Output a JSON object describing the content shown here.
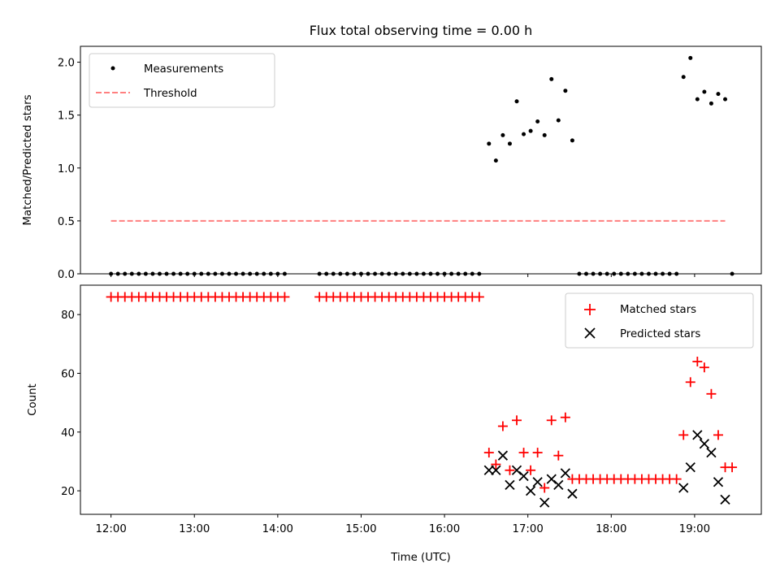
{
  "figure": {
    "title": "Flux total observing time = 0.00 h",
    "xlabel": "Time (UTC)"
  },
  "chart_data": [
    {
      "type": "scatter",
      "ylabel": "Matched/Predicted stars",
      "ylim": [
        0,
        2.15
      ],
      "xlim": [
        "11:38",
        "19:48"
      ],
      "yticks": [
        0.0,
        0.5,
        1.0,
        1.5,
        2.0
      ],
      "ytick_labels": [
        "0.0",
        "0.5",
        "1.0",
        "1.5",
        "2.0"
      ],
      "xticks": [
        "12:00",
        "13:00",
        "14:00",
        "15:00",
        "16:00",
        "17:00",
        "18:00",
        "19:00"
      ],
      "xtick_labels": [],
      "legend_position": "top-left",
      "grid": false,
      "series": [
        {
          "name": "Measurements",
          "marker": "dot",
          "color": "#000000",
          "x": [
            "12:00",
            "12:05",
            "12:10",
            "12:15",
            "12:20",
            "12:25",
            "12:30",
            "12:35",
            "12:40",
            "12:45",
            "12:50",
            "12:55",
            "13:00",
            "13:05",
            "13:10",
            "13:15",
            "13:20",
            "13:25",
            "13:30",
            "13:35",
            "13:40",
            "13:45",
            "13:50",
            "13:55",
            "14:00",
            "14:05",
            "14:30",
            "14:35",
            "14:40",
            "14:45",
            "14:50",
            "14:55",
            "15:00",
            "15:05",
            "15:10",
            "15:15",
            "15:20",
            "15:25",
            "15:30",
            "15:35",
            "15:40",
            "15:45",
            "15:50",
            "15:55",
            "16:00",
            "16:05",
            "16:10",
            "16:15",
            "16:20",
            "16:25",
            "16:32",
            "16:37",
            "16:42",
            "16:47",
            "16:52",
            "16:57",
            "17:02",
            "17:07",
            "17:12",
            "17:17",
            "17:22",
            "17:27",
            "17:32",
            "17:37",
            "17:42",
            "17:47",
            "17:52",
            "17:57",
            "18:02",
            "18:07",
            "18:12",
            "18:17",
            "18:22",
            "18:27",
            "18:32",
            "18:37",
            "18:42",
            "18:47",
            "18:52",
            "18:57",
            "19:02",
            "19:07",
            "19:12",
            "19:17",
            "19:22",
            "19:27"
          ],
          "y": [
            0,
            0,
            0,
            0,
            0,
            0,
            0,
            0,
            0,
            0,
            0,
            0,
            0,
            0,
            0,
            0,
            0,
            0,
            0,
            0,
            0,
            0,
            0,
            0,
            0,
            0,
            0,
            0,
            0,
            0,
            0,
            0,
            0,
            0,
            0,
            0,
            0,
            0,
            0,
            0,
            0,
            0,
            0,
            0,
            0,
            0,
            0,
            0,
            0,
            0,
            1.23,
            1.07,
            1.31,
            1.23,
            1.63,
            1.32,
            1.35,
            1.44,
            1.31,
            1.84,
            1.45,
            1.73,
            1.26,
            0,
            0,
            0,
            0,
            0,
            0,
            0,
            0,
            0,
            0,
            0,
            0,
            0,
            0,
            0,
            1.86,
            2.04,
            1.65,
            1.72,
            1.61,
            1.7,
            1.65,
            0
          ]
        },
        {
          "name": "Threshold",
          "marker": "dashed-line",
          "color": "#ff7f7f",
          "x": [
            "12:00",
            "19:22"
          ],
          "y": [
            0.5,
            0.5
          ]
        }
      ]
    },
    {
      "type": "scatter",
      "ylabel": "Count",
      "ylim": [
        12,
        90
      ],
      "xlim": [
        "11:38",
        "19:48"
      ],
      "yticks": [
        20,
        40,
        60,
        80
      ],
      "ytick_labels": [
        "20",
        "40",
        "60",
        "80"
      ],
      "xticks": [
        "12:00",
        "13:00",
        "14:00",
        "15:00",
        "16:00",
        "17:00",
        "18:00",
        "19:00"
      ],
      "xtick_labels": [
        "12:00",
        "13:00",
        "14:00",
        "15:00",
        "16:00",
        "17:00",
        "18:00",
        "19:00"
      ],
      "legend_position": "top-right",
      "grid": false,
      "series": [
        {
          "name": "Matched stars",
          "marker": "plus",
          "color": "#ff0000",
          "x": [
            "12:00",
            "12:05",
            "12:10",
            "12:15",
            "12:20",
            "12:25",
            "12:30",
            "12:35",
            "12:40",
            "12:45",
            "12:50",
            "12:55",
            "13:00",
            "13:05",
            "13:10",
            "13:15",
            "13:20",
            "13:25",
            "13:30",
            "13:35",
            "13:40",
            "13:45",
            "13:50",
            "13:55",
            "14:00",
            "14:05",
            "14:30",
            "14:35",
            "14:40",
            "14:45",
            "14:50",
            "14:55",
            "15:00",
            "15:05",
            "15:10",
            "15:15",
            "15:20",
            "15:25",
            "15:30",
            "15:35",
            "15:40",
            "15:45",
            "15:50",
            "15:55",
            "16:00",
            "16:05",
            "16:10",
            "16:15",
            "16:20",
            "16:25",
            "16:32",
            "16:37",
            "16:42",
            "16:47",
            "16:52",
            "16:57",
            "17:02",
            "17:07",
            "17:12",
            "17:17",
            "17:22",
            "17:27",
            "17:32",
            "17:37",
            "17:42",
            "17:47",
            "17:52",
            "17:57",
            "18:02",
            "18:07",
            "18:12",
            "18:17",
            "18:22",
            "18:27",
            "18:32",
            "18:37",
            "18:42",
            "18:47",
            "18:52",
            "18:57",
            "19:02",
            "19:07",
            "19:12",
            "19:17",
            "19:22",
            "19:27"
          ],
          "y": [
            86,
            86,
            86,
            86,
            86,
            86,
            86,
            86,
            86,
            86,
            86,
            86,
            86,
            86,
            86,
            86,
            86,
            86,
            86,
            86,
            86,
            86,
            86,
            86,
            86,
            86,
            86,
            86,
            86,
            86,
            86,
            86,
            86,
            86,
            86,
            86,
            86,
            86,
            86,
            86,
            86,
            86,
            86,
            86,
            86,
            86,
            86,
            86,
            86,
            86,
            33,
            29,
            42,
            27,
            44,
            33,
            27,
            33,
            21,
            44,
            32,
            45,
            24,
            24,
            24,
            24,
            24,
            24,
            24,
            24,
            24,
            24,
            24,
            24,
            24,
            24,
            24,
            24,
            39,
            57,
            64,
            62,
            53,
            39,
            28,
            28
          ]
        },
        {
          "name": "Predicted stars",
          "marker": "x",
          "color": "#000000",
          "x": [
            "16:32",
            "16:37",
            "16:42",
            "16:47",
            "16:52",
            "16:57",
            "17:02",
            "17:07",
            "17:12",
            "17:17",
            "17:22",
            "17:27",
            "17:32",
            "18:52",
            "18:57",
            "19:02",
            "19:07",
            "19:12",
            "19:17",
            "19:22"
          ],
          "y": [
            27,
            27,
            32,
            22,
            27,
            25,
            20,
            23,
            16,
            24,
            22,
            26,
            19,
            21,
            28,
            39,
            36,
            33,
            23,
            17
          ]
        }
      ]
    }
  ]
}
